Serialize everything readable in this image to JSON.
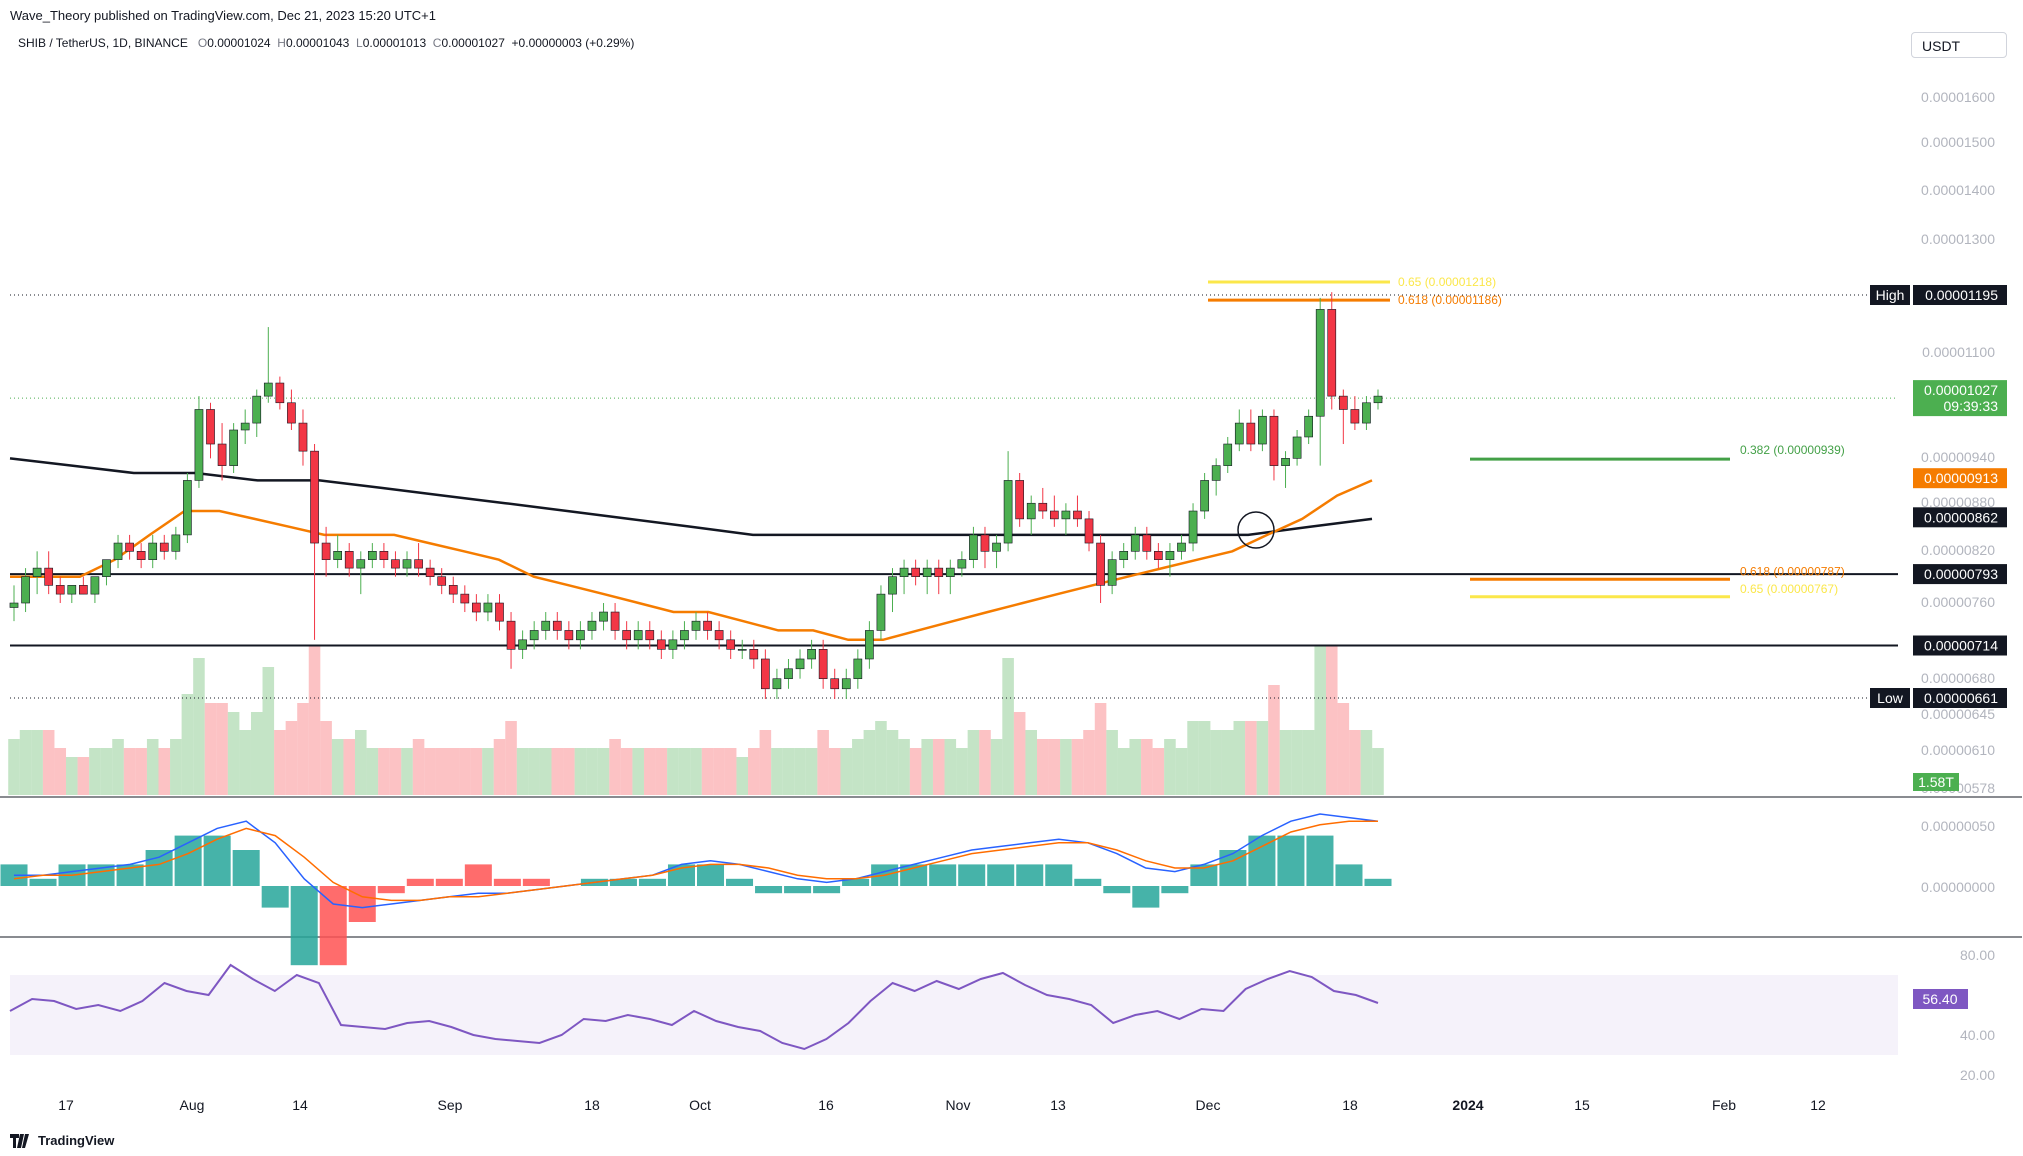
{
  "publisher_line": "Wave_Theory published on TradingView.com, Dec 21, 2023 15:20 UTC+1",
  "symbol_line": {
    "symbol": "SHIB / TetherUS, 1D, BINANCE",
    "o_label": "O",
    "o": "0.00001024",
    "h_label": "H",
    "h": "0.00001043",
    "l_label": "L",
    "l": "0.00001013",
    "c_label": "C",
    "c": "0.00001027",
    "change": "+0.00000003 (+0.29%)"
  },
  "currency_button": "USDT",
  "footer_brand": "TradingView",
  "colors": {
    "up": "#4caf50",
    "down": "#f23645",
    "ema_orange": "#f57c00",
    "ema_black": "#131722",
    "macd_blue": "#2962ff",
    "signal_orange": "#ff6d00",
    "rsi_purple": "#7e57c2",
    "fib_yellow": "#fbe74a",
    "fib_orange": "#f57c00",
    "fib_green": "#43a047"
  },
  "chart_data": [
    {
      "type": "candlestick",
      "title": "SHIB / TetherUS, 1D, BINANCE",
      "ylabel": "USDT",
      "ylim": [
        5.7e-06,
        1.65e-05
      ],
      "y_ticks": [
        "0.00001600",
        "0.00001500",
        "0.00001400",
        "0.00001300",
        "0.00001100",
        "0.00000940",
        "0.00000880",
        "0.00000820",
        "0.00000760",
        "0.00000680",
        "0.00000645",
        "0.00000610",
        "0.00000578"
      ],
      "x_ticks": [
        "17",
        "Aug",
        "14",
        "Sep",
        "18",
        "Oct",
        "16",
        "Nov",
        "13",
        "Dec",
        "18",
        "2024",
        "15",
        "Feb",
        "12"
      ],
      "ohlc": [
        [
          7.55e-06,
          7.8e-06,
          7.4e-06,
          7.6e-06
        ],
        [
          7.6e-06,
          8e-06,
          7.5e-06,
          7.9e-06
        ],
        [
          7.9e-06,
          8.2e-06,
          7.7e-06,
          8e-06
        ],
        [
          8e-06,
          8.2e-06,
          7.7e-06,
          7.8e-06
        ],
        [
          7.8e-06,
          7.9e-06,
          7.6e-06,
          7.7e-06
        ],
        [
          7.7e-06,
          7.8e-06,
          7.6e-06,
          7.8e-06
        ],
        [
          7.8e-06,
          7.9e-06,
          7.7e-06,
          7.7e-06
        ],
        [
          7.7e-06,
          7.9e-06,
          7.6e-06,
          7.9e-06
        ],
        [
          7.9e-06,
          8.1e-06,
          7.8e-06,
          8.1e-06
        ],
        [
          8.1e-06,
          8.4e-06,
          8e-06,
          8.3e-06
        ],
        [
          8.3e-06,
          8.4e-06,
          8.1e-06,
          8.2e-06
        ],
        [
          8.2e-06,
          8.3e-06,
          8e-06,
          8.1e-06
        ],
        [
          8.1e-06,
          8.4e-06,
          8e-06,
          8.3e-06
        ],
        [
          8.3e-06,
          8.4e-06,
          8.1e-06,
          8.2e-06
        ],
        [
          8.2e-06,
          8.5e-06,
          8.1e-06,
          8.4e-06
        ],
        [
          8.4e-06,
          9.2e-06,
          8.3e-06,
          9.1e-06
        ],
        [
          9.1e-06,
          1.03e-05,
          9e-06,
          1.01e-05
        ],
        [
          1.01e-05,
          1.02e-05,
          9.4e-06,
          9.6e-06
        ],
        [
          9.6e-06,
          9.9e-06,
          9.1e-06,
          9.3e-06
        ],
        [
          9.3e-06,
          9.9e-06,
          9.2e-06,
          9.8e-06
        ],
        [
          9.8e-06,
          1.01e-05,
          9.6e-06,
          9.9e-06
        ],
        [
          9.9e-06,
          1.04e-05,
          9.7e-06,
          1.03e-05
        ],
        [
          1.03e-05,
          1.14e-05,
          1.02e-05,
          1.05e-05
        ],
        [
          1.05e-05,
          1.06e-05,
          1.01e-05,
          1.02e-05
        ],
        [
          1.02e-05,
          1.04e-05,
          9.8e-06,
          9.9e-06
        ],
        [
          9.9e-06,
          1.01e-05,
          9.3e-06,
          9.5e-06
        ],
        [
          9.5e-06,
          9.6e-06,
          7.2e-06,
          8.3e-06
        ],
        [
          8.3e-06,
          8.5e-06,
          7.9e-06,
          8.1e-06
        ],
        [
          8.1e-06,
          8.4e-06,
          8e-06,
          8.2e-06
        ],
        [
          8.2e-06,
          8.3e-06,
          7.9e-06,
          8e-06
        ],
        [
          8e-06,
          8.2e-06,
          7.7e-06,
          8.1e-06
        ],
        [
          8.1e-06,
          8.3e-06,
          8e-06,
          8.2e-06
        ],
        [
          8.2e-06,
          8.3e-06,
          8e-06,
          8.1e-06
        ],
        [
          8.1e-06,
          8.2e-06,
          7.9e-06,
          8e-06
        ],
        [
          8e-06,
          8.2e-06,
          7.9e-06,
          8.1e-06
        ],
        [
          8.1e-06,
          8.3e-06,
          7.9e-06,
          8e-06
        ],
        [
          8e-06,
          8.1e-06,
          7.8e-06,
          7.9e-06
        ],
        [
          7.9e-06,
          8e-06,
          7.7e-06,
          7.8e-06
        ],
        [
          7.8e-06,
          7.9e-06,
          7.6e-06,
          7.7e-06
        ],
        [
          7.7e-06,
          7.8e-06,
          7.5e-06,
          7.6e-06
        ],
        [
          7.6e-06,
          7.7e-06,
          7.4e-06,
          7.5e-06
        ],
        [
          7.5e-06,
          7.7e-06,
          7.4e-06,
          7.6e-06
        ],
        [
          7.6e-06,
          7.7e-06,
          7.3e-06,
          7.4e-06
        ],
        [
          7.4e-06,
          7.5e-06,
          6.9e-06,
          7.1e-06
        ],
        [
          7.1e-06,
          7.3e-06,
          7e-06,
          7.2e-06
        ],
        [
          7.2e-06,
          7.4e-06,
          7.1e-06,
          7.3e-06
        ],
        [
          7.3e-06,
          7.5e-06,
          7.2e-06,
          7.4e-06
        ],
        [
          7.4e-06,
          7.5e-06,
          7.2e-06,
          7.3e-06
        ],
        [
          7.3e-06,
          7.4e-06,
          7.1e-06,
          7.2e-06
        ],
        [
          7.2e-06,
          7.4e-06,
          7.1e-06,
          7.3e-06
        ],
        [
          7.3e-06,
          7.5e-06,
          7.2e-06,
          7.4e-06
        ],
        [
          7.4e-06,
          7.6e-06,
          7.3e-06,
          7.5e-06
        ],
        [
          7.5e-06,
          7.6e-06,
          7.2e-06,
          7.3e-06
        ],
        [
          7.3e-06,
          7.4e-06,
          7.1e-06,
          7.2e-06
        ],
        [
          7.2e-06,
          7.4e-06,
          7.1e-06,
          7.3e-06
        ],
        [
          7.3e-06,
          7.4e-06,
          7.1e-06,
          7.2e-06
        ],
        [
          7.2e-06,
          7.3e-06,
          7e-06,
          7.1e-06
        ],
        [
          7.1e-06,
          7.3e-06,
          7e-06,
          7.2e-06
        ],
        [
          7.2e-06,
          7.4e-06,
          7.1e-06,
          7.3e-06
        ],
        [
          7.3e-06,
          7.5e-06,
          7.2e-06,
          7.4e-06
        ],
        [
          7.4e-06,
          7.5e-06,
          7.2e-06,
          7.3e-06
        ],
        [
          7.3e-06,
          7.4e-06,
          7.1e-06,
          7.2e-06
        ],
        [
          7.2e-06,
          7.3e-06,
          7e-06,
          7.1e-06
        ],
        [
          7.1e-06,
          7.2e-06,
          7e-06,
          7.1e-06
        ],
        [
          7.1e-06,
          7.2e-06,
          6.9e-06,
          7e-06
        ],
        [
          7e-06,
          7.1e-06,
          6.6e-06,
          6.7e-06
        ],
        [
          6.7e-06,
          6.9e-06,
          6.6e-06,
          6.8e-06
        ],
        [
          6.8e-06,
          7e-06,
          6.7e-06,
          6.9e-06
        ],
        [
          6.9e-06,
          7.1e-06,
          6.8e-06,
          7e-06
        ],
        [
          7e-06,
          7.2e-06,
          6.9e-06,
          7.1e-06
        ],
        [
          7.1e-06,
          7.2e-06,
          6.7e-06,
          6.8e-06
        ],
        [
          6.8e-06,
          6.9e-06,
          6.6e-06,
          6.7e-06
        ],
        [
          6.7e-06,
          6.9e-06,
          6.6e-06,
          6.8e-06
        ],
        [
          6.8e-06,
          7.1e-06,
          6.7e-06,
          7e-06
        ],
        [
          7e-06,
          7.4e-06,
          6.9e-06,
          7.3e-06
        ],
        [
          7.3e-06,
          7.8e-06,
          7.2e-06,
          7.7e-06
        ],
        [
          7.7e-06,
          8e-06,
          7.5e-06,
          7.9e-06
        ],
        [
          7.9e-06,
          8.1e-06,
          7.7e-06,
          8e-06
        ],
        [
          8e-06,
          8.1e-06,
          7.8e-06,
          7.9e-06
        ],
        [
          7.9e-06,
          8.1e-06,
          7.7e-06,
          8e-06
        ],
        [
          8e-06,
          8.1e-06,
          7.7e-06,
          7.9e-06
        ],
        [
          7.9e-06,
          8.1e-06,
          7.7e-06,
          8e-06
        ],
        [
          8e-06,
          8.2e-06,
          7.9e-06,
          8.1e-06
        ],
        [
          8.1e-06,
          8.5e-06,
          8e-06,
          8.4e-06
        ],
        [
          8.4e-06,
          8.5e-06,
          8e-06,
          8.2e-06
        ],
        [
          8.2e-06,
          8.4e-06,
          8e-06,
          8.3e-06
        ],
        [
          8.3e-06,
          9.5e-06,
          8.2e-06,
          9.1e-06
        ],
        [
          9.1e-06,
          9.2e-06,
          8.5e-06,
          8.6e-06
        ],
        [
          8.6e-06,
          8.9e-06,
          8.4e-06,
          8.8e-06
        ],
        [
          8.8e-06,
          9e-06,
          8.6e-06,
          8.7e-06
        ],
        [
          8.7e-06,
          8.9e-06,
          8.5e-06,
          8.6e-06
        ],
        [
          8.6e-06,
          8.8e-06,
          8.4e-06,
          8.7e-06
        ],
        [
          8.7e-06,
          8.9e-06,
          8.5e-06,
          8.6e-06
        ],
        [
          8.6e-06,
          8.7e-06,
          8.2e-06,
          8.3e-06
        ],
        [
          8.3e-06,
          8.4e-06,
          7.6e-06,
          7.8e-06
        ],
        [
          7.8e-06,
          8.2e-06,
          7.7e-06,
          8.1e-06
        ],
        [
          8.1e-06,
          8.3e-06,
          8e-06,
          8.2e-06
        ],
        [
          8.2e-06,
          8.5e-06,
          8.1e-06,
          8.4e-06
        ],
        [
          8.4e-06,
          8.5e-06,
          8.1e-06,
          8.2e-06
        ],
        [
          8.2e-06,
          8.3e-06,
          8e-06,
          8.1e-06
        ],
        [
          8.1e-06,
          8.3e-06,
          7.9e-06,
          8.2e-06
        ],
        [
          8.2e-06,
          8.4e-06,
          8.1e-06,
          8.3e-06
        ],
        [
          8.3e-06,
          8.8e-06,
          8.2e-06,
          8.7e-06
        ],
        [
          8.7e-06,
          9.2e-06,
          8.6e-06,
          9.1e-06
        ],
        [
          9.1e-06,
          9.4e-06,
          8.9e-06,
          9.3e-06
        ],
        [
          9.3e-06,
          9.7e-06,
          9.2e-06,
          9.6e-06
        ],
        [
          9.6e-06,
          1.01e-05,
          9.5e-06,
          9.9e-06
        ],
        [
          9.9e-06,
          1.01e-05,
          9.5e-06,
          9.6e-06
        ],
        [
          9.6e-06,
          1.01e-05,
          9.5e-06,
          1e-05
        ],
        [
          1e-05,
          1.01e-05,
          9.1e-06,
          9.3e-06
        ],
        [
          9.3e-06,
          9.5e-06,
          9e-06,
          9.4e-06
        ],
        [
          9.4e-06,
          9.8e-06,
          9.3e-06,
          9.7e-06
        ],
        [
          9.7e-06,
          1.01e-05,
          9.6e-06,
          1e-05
        ],
        [
          1e-05,
          1.19e-05,
          9.3e-06,
          1.17e-05
        ],
        [
          1.17e-05,
          1.2e-05,
          1.01e-05,
          1.03e-05
        ],
        [
          1.03e-05,
          1.04e-05,
          9.6e-06,
          1.01e-05
        ],
        [
          1.01e-05,
          1.03e-05,
          9.8e-06,
          9.9e-06
        ],
        [
          9.9e-06,
          1.03e-05,
          9.8e-06,
          1.02e-05
        ],
        [
          1.02e-05,
          1.04e-05,
          1.01e-05,
          1.03e-05
        ]
      ],
      "ema_orange_points": [
        7.9e-06,
        7.9e-06,
        7.9e-06,
        8.1e-06,
        8.4e-06,
        8.7e-06,
        8.7e-06,
        8.6e-06,
        8.5e-06,
        8.4e-06,
        8.4e-06,
        8.4e-06,
        8.3e-06,
        8.2e-06,
        8.1e-06,
        7.9e-06,
        7.8e-06,
        7.7e-06,
        7.6e-06,
        7.5e-06,
        7.5e-06,
        7.4e-06,
        7.3e-06,
        7.3e-06,
        7.2e-06,
        7.2e-06,
        7.3e-06,
        7.4e-06,
        7.5e-06,
        7.6e-06,
        7.7e-06,
        7.8e-06,
        7.9e-06,
        8e-06,
        8.1e-06,
        8.2e-06,
        8.4e-06,
        8.6e-06,
        8.9e-06,
        9.1e-06
      ],
      "ema_black_points": [
        9.4e-06,
        9.3e-06,
        9.2e-06,
        9.2e-06,
        9.1e-06,
        9.1e-06,
        9e-06,
        8.9e-06,
        8.8e-06,
        8.7e-06,
        8.6e-06,
        8.5e-06,
        8.4e-06,
        8.4e-06,
        8.4e-06,
        8.4e-06,
        8.4e-06,
        8.4e-06,
        8.4e-06,
        8.4e-06,
        8.4e-06,
        8.5e-06,
        8.6e-06
      ],
      "volume_label": "1.58T",
      "fib_levels_upper": [
        {
          "label": "0.65 (0.00001218)",
          "value": 1.218e-05,
          "color": "yellow"
        },
        {
          "label": "0.618 (0.00001186)",
          "value": 1.186e-05,
          "color": "orange"
        }
      ],
      "fib_levels_mid": [
        {
          "label": "0.382 (0.00000939)",
          "value": 9.39e-06,
          "color": "green"
        }
      ],
      "fib_levels_lower": [
        {
          "label": "0.618 (0.00000787)",
          "value": 7.87e-06,
          "color": "orange"
        },
        {
          "label": "0.65 (0.00000767)",
          "value": 7.67e-06,
          "color": "yellow"
        }
      ],
      "horizontal_levels": [
        {
          "value": 7.93e-06,
          "label": "0.00000793",
          "style": "solid"
        },
        {
          "value": 7.14e-06,
          "label": "0.00000714",
          "style": "solid"
        },
        {
          "value": 1.195e-05,
          "label": "0.00001195",
          "tag": "High",
          "style": "dotted"
        },
        {
          "value": 6.61e-06,
          "label": "0.00000661",
          "tag": "Low",
          "style": "dotted"
        }
      ],
      "price_badges": [
        {
          "value": 1.027e-05,
          "label": "0.00001027",
          "sub": "09:39:33",
          "color": "green"
        },
        {
          "value": 9.13e-06,
          "label": "0.00000913",
          "color": "orange"
        },
        {
          "value": 8.62e-06,
          "label": "0.00000862",
          "color": "black"
        }
      ]
    },
    {
      "type": "macd",
      "y_ticks": [
        "0.00000050",
        "0.00000000"
      ],
      "macd_points": [
        0.3,
        0.3,
        0.4,
        0.5,
        0.6,
        0.8,
        1.2,
        1.6,
        1.8,
        1.2,
        0.2,
        -0.5,
        -0.6,
        -0.5,
        -0.4,
        -0.3,
        -0.2,
        -0.2,
        -0.1,
        0.0,
        0.1,
        0.2,
        0.3,
        0.6,
        0.7,
        0.6,
        0.4,
        0.2,
        0.1,
        0.2,
        0.4,
        0.6,
        0.8,
        1.0,
        1.1,
        1.2,
        1.3,
        1.2,
        0.9,
        0.5,
        0.4,
        0.6,
        0.9,
        1.4,
        1.8,
        2.0,
        1.9,
        1.8
      ],
      "signal_points": [
        0.2,
        0.3,
        0.3,
        0.4,
        0.5,
        0.6,
        0.9,
        1.3,
        1.6,
        1.4,
        0.8,
        0.1,
        -0.3,
        -0.4,
        -0.4,
        -0.3,
        -0.3,
        -0.2,
        -0.1,
        0.0,
        0.1,
        0.2,
        0.3,
        0.5,
        0.6,
        0.6,
        0.5,
        0.3,
        0.2,
        0.2,
        0.3,
        0.5,
        0.7,
        0.9,
        1.0,
        1.1,
        1.2,
        1.2,
        1.0,
        0.7,
        0.5,
        0.5,
        0.7,
        1.1,
        1.5,
        1.7,
        1.8,
        1.8
      ]
    },
    {
      "type": "rsi",
      "y_ticks": [
        "80.00",
        "40.00",
        "20.00"
      ],
      "current_label": "56.40",
      "band": [
        30,
        70
      ],
      "rsi_points": [
        52,
        58,
        57,
        53,
        55,
        52,
        57,
        66,
        62,
        60,
        75,
        68,
        62,
        70,
        66,
        45,
        44,
        43,
        46,
        47,
        44,
        40,
        38,
        37,
        36,
        40,
        48,
        47,
        50,
        48,
        45,
        52,
        47,
        44,
        42,
        36,
        33,
        38,
        46,
        57,
        66,
        62,
        67,
        63,
        68,
        71,
        65,
        60,
        58,
        55,
        46,
        50,
        52,
        48,
        53,
        52,
        63,
        68,
        72,
        69,
        62,
        60,
        56
      ]
    }
  ]
}
